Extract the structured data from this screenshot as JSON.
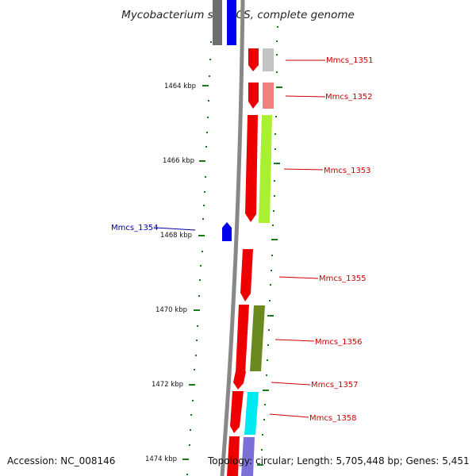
{
  "title": "Mycobacterium sp. MCS, complete genome",
  "footer": {
    "accession": "Accession: NC_008146",
    "topology": "Topology: circular; Length: 5,705,448 bp; Genes: 5,451"
  },
  "ticks": [
    {
      "label": "1464 kbp"
    },
    {
      "label": "1466 kbp"
    },
    {
      "label": "1468 kbp"
    },
    {
      "label": "1470 kbp"
    },
    {
      "label": "1472 kbp"
    },
    {
      "label": "1474 kbp"
    }
  ],
  "gene_labels": [
    {
      "text": "Mmcs_1351",
      "color": "#cc0000"
    },
    {
      "text": "Mmcs_1352",
      "color": "#cc0000"
    },
    {
      "text": "Mmcs_1353",
      "color": "#cc0000"
    },
    {
      "text": "Mmcs_1354",
      "color": "#0000aa"
    },
    {
      "text": "Mmcs_1355",
      "color": "#cc0000"
    },
    {
      "text": "Mmcs_1356",
      "color": "#cc0000"
    },
    {
      "text": "Mmcs_1357",
      "color": "#cc0000"
    },
    {
      "text": "Mmcs_1358",
      "color": "#cc0000"
    }
  ],
  "colors": {
    "cds_forward": "#ee0000",
    "cds_reverse": "#0000ee",
    "backbone": "#888888",
    "tick": "#1a7a1a"
  }
}
